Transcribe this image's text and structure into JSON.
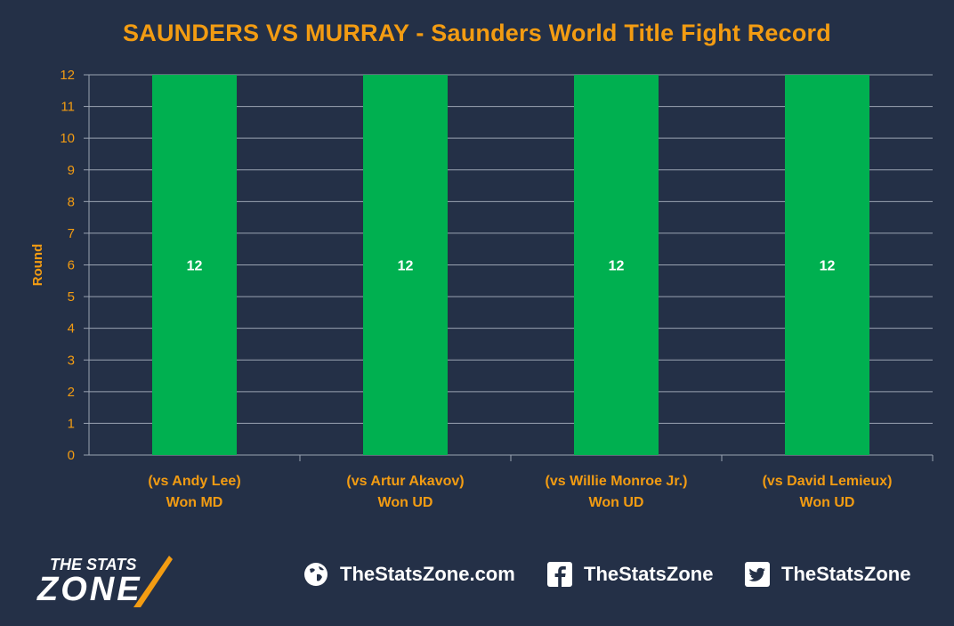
{
  "chart_data": {
    "type": "bar",
    "title": "SAUNDERS VS MURRAY - Saunders World Title Fight Record",
    "ylabel": "Round",
    "xlabel": "",
    "ylim": [
      0,
      12
    ],
    "yticks": [
      0,
      1,
      2,
      3,
      4,
      5,
      6,
      7,
      8,
      9,
      10,
      11,
      12
    ],
    "grid": true,
    "categories": [
      [
        "(vs Andy Lee)",
        "Won MD"
      ],
      [
        "(vs Artur Akavov)",
        "Won UD"
      ],
      [
        "(vs Willie Monroe Jr.)",
        "Won UD"
      ],
      [
        "(vs David Lemieux)",
        "Won UD"
      ]
    ],
    "values": [
      12,
      12,
      12,
      12
    ],
    "data_labels": [
      "12",
      "12",
      "12",
      "12"
    ],
    "bar_color": "#00b050"
  },
  "colors": {
    "background": "#243047",
    "accent": "#f39c12",
    "grid": "#9aa3b2",
    "bar": "#00b050",
    "text_light": "#ffffff"
  },
  "footer": {
    "logo_line1": "THE STATS",
    "logo_line2": "ZONE",
    "website": "TheStatsZone.com",
    "facebook": "TheStatsZone",
    "twitter": "TheStatsZone",
    "icons": [
      "globe-icon",
      "facebook-icon",
      "twitter-icon"
    ]
  }
}
